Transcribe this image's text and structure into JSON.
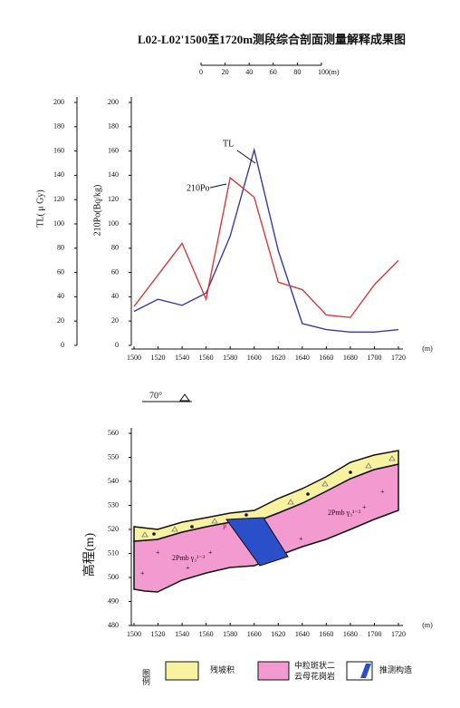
{
  "chart_data": [
    {
      "type": "line",
      "title": "L02-L02'1500至1720m测段综合剖面测量解释成果图",
      "scale_bar": {
        "ticks": [
          0,
          20,
          40,
          60,
          80,
          {
            "value": 100,
            "label": "100(m)"
          }
        ]
      },
      "x": [
        1500,
        1520,
        1540,
        1560,
        1580,
        1600,
        1620,
        1640,
        1660,
        1680,
        1700,
        1720
      ],
      "xlim": [
        1500,
        1720
      ],
      "xticks": [
        1500,
        1520,
        1540,
        1560,
        1580,
        1600,
        1620,
        1640,
        1660,
        1680,
        1700,
        1720
      ],
      "x_unit": "(m)",
      "ylim": [
        0,
        200
      ],
      "yticks": [
        0,
        20,
        40,
        60,
        80,
        100,
        120,
        140,
        160,
        180,
        200
      ],
      "y_label": "TL( μ Gy)",
      "y2lim": [
        0,
        200
      ],
      "y2ticks": [
        0,
        20,
        40,
        60,
        80,
        100,
        120,
        140,
        160,
        180,
        200
      ],
      "y2_label": "210Po(Bq/kg)",
      "series": [
        {
          "name": "TL",
          "color": "#3b3ba6",
          "values": [
            28,
            38,
            33,
            43,
            90,
            161,
            78,
            18,
            13,
            11,
            11,
            13
          ]
        },
        {
          "name": "210Po",
          "color": "#d23c3c",
          "axis": "y2",
          "values": [
            32,
            58,
            84,
            38,
            138,
            122,
            52,
            46,
            25,
            23,
            50,
            70
          ]
        }
      ]
    },
    {
      "type": "section",
      "xlim": [
        1500,
        1720
      ],
      "xticks": [
        1500,
        1520,
        1540,
        1560,
        1580,
        1600,
        1620,
        1640,
        1660,
        1680,
        1700,
        1720
      ],
      "x_unit": "(m)",
      "ylim": [
        480,
        560
      ],
      "yticks": [
        480,
        490,
        500,
        510,
        520,
        530,
        540,
        550,
        560
      ],
      "y_label": "高程(m)",
      "annotations": [
        "70°",
        "2Pmb γ₃¹⁻³",
        "2Pmb γ₃¹⁻³",
        "P"
      ],
      "legend": {
        "title": "图例",
        "items": [
          [
            "残坡积"
          ],
          [
            "中粒斑状二",
            "云母花岗岩"
          ],
          [
            "推测构造"
          ]
        ]
      }
    }
  ]
}
